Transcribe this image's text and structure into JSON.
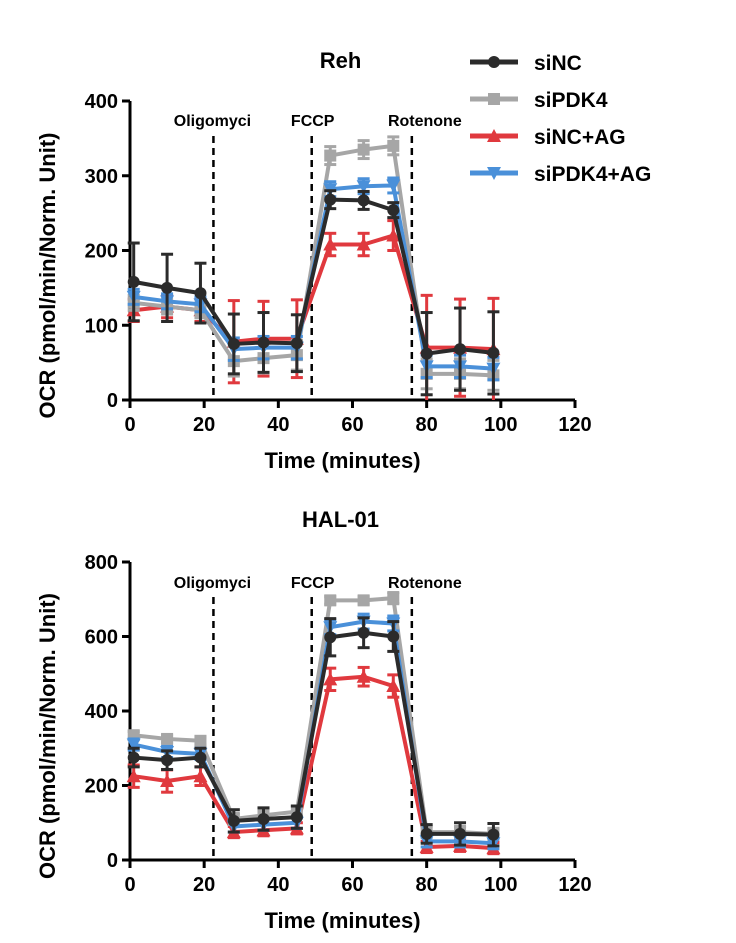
{
  "legend": [
    {
      "name": "siNC",
      "color": "#2b2b2b",
      "marker": "circle"
    },
    {
      "name": "siPDK4",
      "color": "#a6a6a6",
      "marker": "square"
    },
    {
      "name": "siNC+AG",
      "color": "#e0393e",
      "marker": "triangle-up"
    },
    {
      "name": "siPDK4+AG",
      "color": "#4a90d9",
      "marker": "triangle-down"
    }
  ],
  "chart_data": [
    {
      "type": "line",
      "title": "Reh",
      "xlabel": "Time (minutes)",
      "ylabel": "OCR (pmol/min/Norm. Unit)",
      "xlim": [
        0,
        120
      ],
      "ylim": [
        0,
        400
      ],
      "xticks": [
        0,
        20,
        40,
        60,
        80,
        100,
        120
      ],
      "yticks": [
        0,
        100,
        200,
        300,
        400
      ],
      "x": [
        1,
        10,
        19,
        28,
        36,
        45,
        54,
        63,
        71,
        80,
        89,
        98
      ],
      "annotations": [
        {
          "text": "Oligomyci",
          "x": 22.5
        },
        {
          "text": "FCCP",
          "x": 49
        },
        {
          "text": "Rotenone",
          "x": 76
        }
      ],
      "series": [
        {
          "name": "siNC",
          "values": [
            158,
            150,
            143,
            75,
            77,
            76,
            268,
            267,
            254,
            62,
            68,
            63
          ],
          "errors": [
            52,
            45,
            40,
            40,
            40,
            38,
            12,
            12,
            10,
            55,
            55,
            55
          ]
        },
        {
          "name": "siPDK4",
          "values": [
            130,
            125,
            120,
            52,
            56,
            60,
            327,
            335,
            340,
            35,
            35,
            33
          ],
          "errors": [
            10,
            10,
            10,
            20,
            20,
            20,
            12,
            12,
            12,
            20,
            20,
            20
          ]
        },
        {
          "name": "siNC+AG",
          "values": [
            120,
            125,
            120,
            78,
            82,
            82,
            208,
            208,
            220,
            70,
            70,
            68
          ],
          "errors": [
            15,
            15,
            15,
            55,
            50,
            52,
            15,
            15,
            20,
            70,
            65,
            68
          ]
        },
        {
          "name": "siPDK4+AG",
          "values": [
            138,
            132,
            128,
            68,
            70,
            70,
            282,
            286,
            287,
            45,
            45,
            42
          ],
          "errors": [
            10,
            10,
            10,
            15,
            15,
            15,
            10,
            10,
            10,
            15,
            15,
            15
          ]
        }
      ]
    },
    {
      "type": "line",
      "title": "HAL-01",
      "xlabel": "Time (minutes)",
      "ylabel": "OCR (pmol/min/Norm. Unit)",
      "xlim": [
        0,
        120
      ],
      "ylim": [
        0,
        800
      ],
      "xticks": [
        0,
        20,
        40,
        60,
        80,
        100,
        120
      ],
      "yticks": [
        0,
        200,
        400,
        600,
        800
      ],
      "x": [
        1,
        10,
        19,
        28,
        36,
        45,
        54,
        63,
        71,
        80,
        89,
        98
      ],
      "annotations": [
        {
          "text": "Oligomyci",
          "x": 22.5
        },
        {
          "text": "FCCP",
          "x": 49
        },
        {
          "text": "Rotenone",
          "x": 76
        }
      ],
      "series": [
        {
          "name": "siNC",
          "values": [
            275,
            268,
            275,
            105,
            110,
            115,
            598,
            610,
            600,
            70,
            70,
            68
          ],
          "errors": [
            25,
            25,
            25,
            30,
            30,
            30,
            50,
            40,
            40,
            25,
            30,
            30
          ]
        },
        {
          "name": "siPDK4",
          "values": [
            335,
            325,
            320,
            110,
            120,
            130,
            697,
            697,
            703,
            75,
            75,
            70
          ],
          "errors": [
            10,
            10,
            10,
            15,
            15,
            15,
            10,
            10,
            15,
            15,
            15,
            15
          ]
        },
        {
          "name": "siNC+AG",
          "values": [
            225,
            212,
            225,
            75,
            80,
            85,
            485,
            492,
            467,
            35,
            38,
            32
          ],
          "errors": [
            30,
            30,
            25,
            15,
            15,
            15,
            30,
            25,
            30,
            15,
            15,
            15
          ]
        },
        {
          "name": "siPDK4+AG",
          "values": [
            310,
            290,
            285,
            90,
            95,
            100,
            625,
            640,
            635,
            50,
            50,
            45
          ],
          "errors": [
            15,
            15,
            15,
            15,
            15,
            15,
            20,
            20,
            20,
            15,
            15,
            15
          ]
        }
      ]
    }
  ]
}
